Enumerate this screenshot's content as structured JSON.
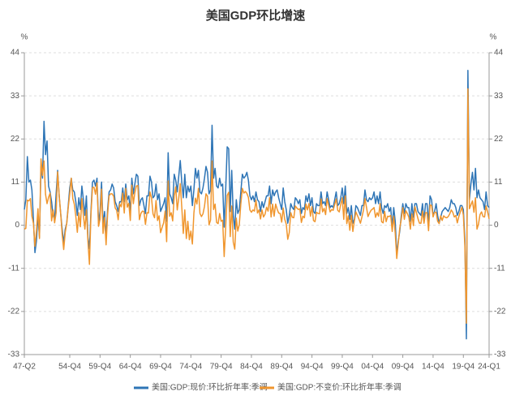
{
  "chart_data": {
    "type": "line",
    "title": "美国GDP环比增速",
    "y_label": "%",
    "y2_label": "%",
    "ylim": [
      -33,
      44
    ],
    "yticks": [
      -33,
      -22,
      -11,
      0,
      11,
      22,
      33,
      44
    ],
    "y2lim": [
      -33,
      44
    ],
    "y2ticks": [
      -33,
      -22,
      -11,
      0,
      11,
      22,
      33,
      44
    ],
    "grid": true,
    "legend": "bottom",
    "categories": [
      "47-Q2",
      null,
      null,
      null,
      null,
      null,
      null,
      null,
      null,
      null,
      null,
      null,
      null,
      null,
      null,
      null,
      null,
      null,
      null,
      null,
      null,
      null,
      null,
      null,
      null,
      null,
      null,
      null,
      null,
      null,
      "54-Q4",
      null,
      null,
      null,
      null,
      null,
      null,
      null,
      null,
      null,
      null,
      null,
      null,
      null,
      null,
      null,
      null,
      null,
      null,
      null,
      "59-Q4",
      null,
      null,
      null,
      null,
      null,
      null,
      null,
      null,
      null,
      null,
      null,
      null,
      null,
      null,
      null,
      null,
      null,
      null,
      null,
      "64-Q4",
      null,
      null,
      null,
      null,
      null,
      null,
      null,
      null,
      null,
      null,
      null,
      null,
      null,
      null,
      null,
      null,
      null,
      null,
      null,
      "69-Q4",
      null,
      null,
      null,
      null,
      null,
      null,
      null,
      null,
      null,
      null,
      null,
      null,
      null,
      null,
      null,
      null,
      null,
      null,
      null,
      "74-Q4",
      null,
      null,
      null,
      null,
      null,
      null,
      null,
      null,
      null,
      null,
      null,
      null,
      null,
      null,
      null,
      null,
      null,
      null,
      null,
      "79-Q4",
      null,
      null,
      null,
      null,
      null,
      null,
      null,
      null,
      null,
      null,
      null,
      null,
      null,
      null,
      null,
      null,
      null,
      null,
      null,
      "84-Q4",
      null,
      null,
      null,
      null,
      null,
      null,
      null,
      null,
      null,
      null,
      null,
      null,
      null,
      null,
      null,
      null,
      null,
      null,
      null,
      "89-Q4",
      null,
      null,
      null,
      null,
      null,
      null,
      null,
      null,
      null,
      null,
      null,
      null,
      null,
      null,
      null,
      null,
      null,
      null,
      null,
      "94-Q4",
      null,
      null,
      null,
      null,
      null,
      null,
      null,
      null,
      null,
      null,
      null,
      null,
      null,
      null,
      null,
      null,
      null,
      null,
      null,
      "99-Q4",
      null,
      null,
      null,
      null,
      null,
      null,
      null,
      null,
      null,
      null,
      null,
      null,
      null,
      null,
      null,
      null,
      null,
      null,
      null,
      "04-Q4",
      null,
      null,
      null,
      null,
      null,
      null,
      null,
      null,
      null,
      null,
      null,
      null,
      null,
      null,
      null,
      null,
      null,
      null,
      null,
      "09-Q4",
      null,
      null,
      null,
      null,
      null,
      null,
      null,
      null,
      null,
      null,
      null,
      null,
      null,
      null,
      null,
      null,
      null,
      null,
      null,
      "14-Q4",
      null,
      null,
      null,
      null,
      null,
      null,
      null,
      null,
      null,
      null,
      null,
      null,
      null,
      null,
      null,
      null,
      null,
      null,
      null,
      "19-Q4",
      null,
      null,
      null,
      null,
      null,
      null,
      null,
      null,
      null,
      null,
      null,
      null,
      null,
      null,
      null,
      null,
      "24-Q1"
    ],
    "series": [
      {
        "name": "美国:GDP:现价:环比折年率:季调",
        "color": "#2e75b6",
        "values": [
          4.0,
          6.5,
          17.5,
          11.0,
          11.5,
          9.0,
          1.5,
          -7.0,
          -4.0,
          2.5,
          -3.0,
          15.0,
          12.0,
          26.5,
          18.0,
          21.5,
          10.0,
          8.5,
          6.0,
          2.5,
          1.5,
          8.0,
          14.0,
          7.5,
          3.0,
          -1.0,
          -4.5,
          -1.0,
          0.5,
          5.0,
          9.5,
          12.0,
          9.0,
          8.5,
          6.0,
          2.5,
          7.0,
          4.0,
          10.0,
          6.5,
          2.5,
          7.5,
          -3.0,
          -6.0,
          3.5,
          11.0,
          11.5,
          10.0,
          12.0,
          0.5,
          3.5,
          11.0,
          0.0,
          3.5,
          -3.0,
          4.0,
          8.5,
          9.0,
          10.5,
          9.5,
          6.0,
          5.0,
          3.5,
          6.0,
          6.0,
          9.5,
          6.0,
          10.5,
          6.5,
          7.5,
          3.5,
          12.0,
          8.0,
          10.5,
          13.0,
          12.5,
          5.0,
          6.5,
          7.0,
          5.0,
          3.0,
          7.5,
          7.5,
          12.5,
          11.0,
          7.0,
          7.5,
          10.5,
          6.5,
          8.0,
          3.5,
          4.5,
          5.5,
          7.0,
          1.0,
          18.5,
          8.0,
          7.0,
          5.5,
          13.0,
          11.5,
          8.5,
          12.5,
          16.5,
          11.0,
          7.0,
          13.0,
          7.0,
          10.0,
          8.5,
          10.0,
          5.0,
          9.0,
          14.5,
          12.0,
          14.0,
          8.5,
          8.0,
          9.5,
          12.0,
          15.0,
          13.5,
          8.0,
          9.0,
          25.5,
          12.0,
          14.5,
          10.0,
          9.5,
          12.0,
          10.0,
          10.5,
          -0.5,
          9.0,
          20.0,
          19.5,
          3.5,
          14.0,
          2.5,
          -1.0,
          6.5,
          3.0,
          4.0,
          8.5,
          13.0,
          12.0,
          12.5,
          13.5,
          11.5,
          7.5,
          6.5,
          7.5,
          6.0,
          8.5,
          6.5,
          6.0,
          3.5,
          6.0,
          4.5,
          6.0,
          7.5,
          7.5,
          10.0,
          5.5,
          9.0,
          7.5,
          8.5,
          9.0,
          7.0,
          5.5,
          4.0,
          9.5,
          6.0,
          4.0,
          0.5,
          2.5,
          5.5,
          4.5,
          4.0,
          7.0,
          6.5,
          5.5,
          6.5,
          3.0,
          4.5,
          4.0,
          7.5,
          6.0,
          8.0,
          5.0,
          7.0,
          3.5,
          3.0,
          5.5,
          5.0,
          5.0,
          8.5,
          5.5,
          6.0,
          5.0,
          8.5,
          6.5,
          4.5,
          5.0,
          4.5,
          6.5,
          8.5,
          5.0,
          5.5,
          7.0,
          9.5,
          5.5,
          10.0,
          3.0,
          4.5,
          1.5,
          5.0,
          0.5,
          1.5,
          5.0,
          4.5,
          3.5,
          2.5,
          5.0,
          5.0,
          9.0,
          6.5,
          6.0,
          7.0,
          6.5,
          7.0,
          8.5,
          5.5,
          7.5,
          5.5,
          8.5,
          4.5,
          3.0,
          5.0,
          4.5,
          5.5,
          3.5,
          4.5,
          -0.5,
          4.5,
          1.0,
          -7.5,
          -4.0,
          -1.5,
          2.5,
          5.5,
          3.0,
          5.5,
          4.5,
          4.5,
          1.0,
          5.5,
          2.0,
          5.5,
          5.5,
          3.5,
          3.0,
          2.5,
          5.5,
          1.0,
          5.5,
          5.5,
          0.5,
          7.5,
          6.5,
          2.5,
          3.5,
          5.5,
          2.5,
          0.5,
          2.0,
          3.5,
          4.0,
          4.5,
          4.0,
          3.5,
          4.5,
          6.5,
          5.5,
          5.5,
          4.5,
          2.5,
          3.5,
          5.0,
          5.0,
          4.0,
          -3.5,
          -29.0,
          39.5,
          6.5,
          10.5,
          13.5,
          9.0,
          14.5,
          7.0,
          9.0,
          7.0,
          6.5,
          6.0,
          4.0,
          8.5,
          5.0,
          4.5
        ]
      },
      {
        "name": "美国:GDP:不变价:环比折年率:季调",
        "color": "#f0962e",
        "values": [
          -1.0,
          -0.8,
          6.4,
          6.2,
          6.8,
          2.3,
          0.5,
          -5.4,
          -1.4,
          4.2,
          -3.4,
          16.9,
          12.7,
          16.4,
          7.9,
          5.5,
          7.1,
          8.2,
          1.1,
          3.9,
          0.6,
          3.2,
          13.6,
          7.7,
          3.1,
          -2.4,
          -6.2,
          -1.9,
          0.4,
          4.5,
          8.0,
          12.0,
          6.8,
          5.4,
          2.3,
          -1.8,
          3.2,
          -0.4,
          6.8,
          2.5,
          -1.0,
          3.9,
          -4.1,
          -10.0,
          2.6,
          9.6,
          9.7,
          7.9,
          10.8,
          -0.3,
          1.5,
          9.2,
          -2.1,
          2.0,
          -5.0,
          2.7,
          7.5,
          8.0,
          8.0,
          7.4,
          4.4,
          3.8,
          1.4,
          5.4,
          4.7,
          8.2,
          3.1,
          9.4,
          4.6,
          5.6,
          1.2,
          10.2,
          5.5,
          8.3,
          10.0,
          10.1,
          1.4,
          3.0,
          3.6,
          3.5,
          0.2,
          3.2,
          3.1,
          8.5,
          7.0,
          2.9,
          1.9,
          6.3,
          1.2,
          2.4,
          -1.9,
          -0.6,
          0.6,
          3.6,
          -4.2,
          11.3,
          2.3,
          3.2,
          1.1,
          7.3,
          9.8,
          3.9,
          6.9,
          10.6,
          4.6,
          -2.1,
          3.9,
          -3.4,
          1.0,
          -3.7,
          -1.5,
          -4.8,
          3.1,
          6.9,
          5.4,
          9.4,
          3.0,
          2.2,
          2.9,
          4.8,
          8.0,
          7.4,
          0.1,
          1.3,
          16.4,
          4.0,
          5.4,
          0.7,
          0.4,
          3.0,
          1.0,
          1.3,
          -8.0,
          -0.5,
          7.6,
          8.4,
          -2.9,
          4.9,
          -4.3,
          -6.1,
          1.8,
          -1.5,
          0.2,
          5.4,
          9.4,
          8.2,
          8.6,
          8.1,
          7.1,
          3.9,
          3.3,
          3.9,
          3.6,
          6.4,
          3.1,
          3.9,
          1.6,
          3.9,
          2.1,
          2.8,
          4.6,
          3.6,
          7.0,
          2.1,
          5.4,
          2.3,
          5.4,
          4.1,
          3.1,
          3.0,
          0.8,
          4.4,
          1.5,
          0.3,
          -3.6,
          -1.9,
          3.2,
          2.0,
          1.9,
          4.9,
          4.4,
          4.0,
          4.2,
          0.7,
          2.3,
          1.9,
          5.4,
          3.9,
          5.5,
          2.3,
          4.7,
          1.2,
          0.9,
          3.3,
          3.0,
          2.9,
          6.7,
          3.4,
          4.3,
          2.7,
          6.8,
          5.1,
          3.4,
          4.0,
          3.8,
          5.3,
          6.7,
          3.8,
          3.4,
          5.3,
          7.0,
          1.5,
          7.5,
          0.4,
          2.4,
          -1.3,
          2.5,
          -1.6,
          1.1,
          3.4,
          2.5,
          1.6,
          0.5,
          2.1,
          3.8,
          6.8,
          4.6,
          2.2,
          3.1,
          3.8,
          4.1,
          4.5,
          2.0,
          3.2,
          2.3,
          5.5,
          0.9,
          0.6,
          3.5,
          0.9,
          2.3,
          2.2,
          2.5,
          -1.6,
          2.3,
          -2.1,
          -8.5,
          -4.6,
          -0.7,
          1.5,
          4.5,
          1.5,
          3.7,
          3.0,
          2.0,
          -1.0,
          2.9,
          -0.1,
          4.7,
          3.2,
          1.7,
          0.5,
          0.5,
          3.6,
          0.5,
          3.2,
          3.2,
          -1.4,
          5.2,
          5.0,
          2.1,
          3.3,
          3.3,
          1.0,
          0.4,
          2.4,
          1.2,
          2.4,
          2.0,
          1.9,
          2.2,
          2.9,
          3.9,
          3.3,
          2.1,
          2.5,
          0.6,
          2.2,
          3.4,
          4.6,
          2.6,
          -5.3,
          -25.0,
          34.8,
          4.2,
          5.2,
          6.2,
          3.3,
          7.0,
          -1.0,
          0.3,
          2.7,
          3.4,
          2.2,
          2.1,
          4.9,
          3.4,
          1.6
        ]
      }
    ]
  }
}
